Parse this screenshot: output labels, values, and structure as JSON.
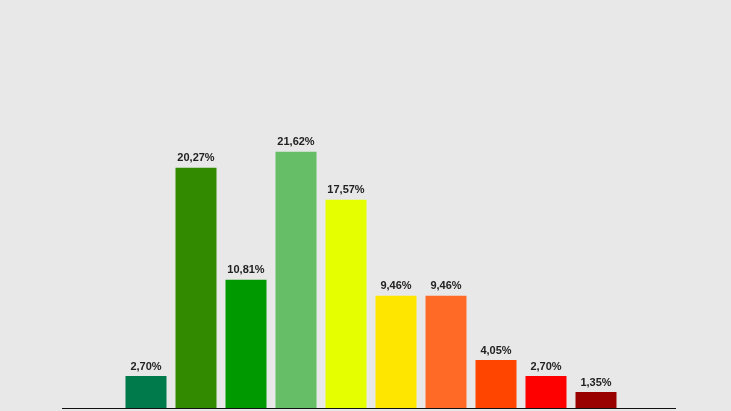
{
  "chart_data": {
    "type": "bar",
    "categories": [
      null,
      null,
      null,
      null,
      null,
      null,
      null,
      null,
      null,
      null
    ],
    "values": [
      2.7,
      20.27,
      10.81,
      21.62,
      17.57,
      9.46,
      9.46,
      4.05,
      2.7,
      1.35
    ],
    "value_labels": [
      "2,70%",
      "20,27%",
      "10,81%",
      "21,62%",
      "17,57%",
      "9,46%",
      "9,46%",
      "4,05%",
      "2,70%",
      "1,35%"
    ],
    "colors": [
      "#00794b",
      "#318a00",
      "#009900",
      "#66bf66",
      "#e6ff00",
      "#ffe600",
      "#ff6a26",
      "#ff4500",
      "#ff0000",
      "#990000"
    ],
    "ylim": [
      0,
      34
    ],
    "data_labels": true,
    "tick_labels": false,
    "grid": false
  }
}
